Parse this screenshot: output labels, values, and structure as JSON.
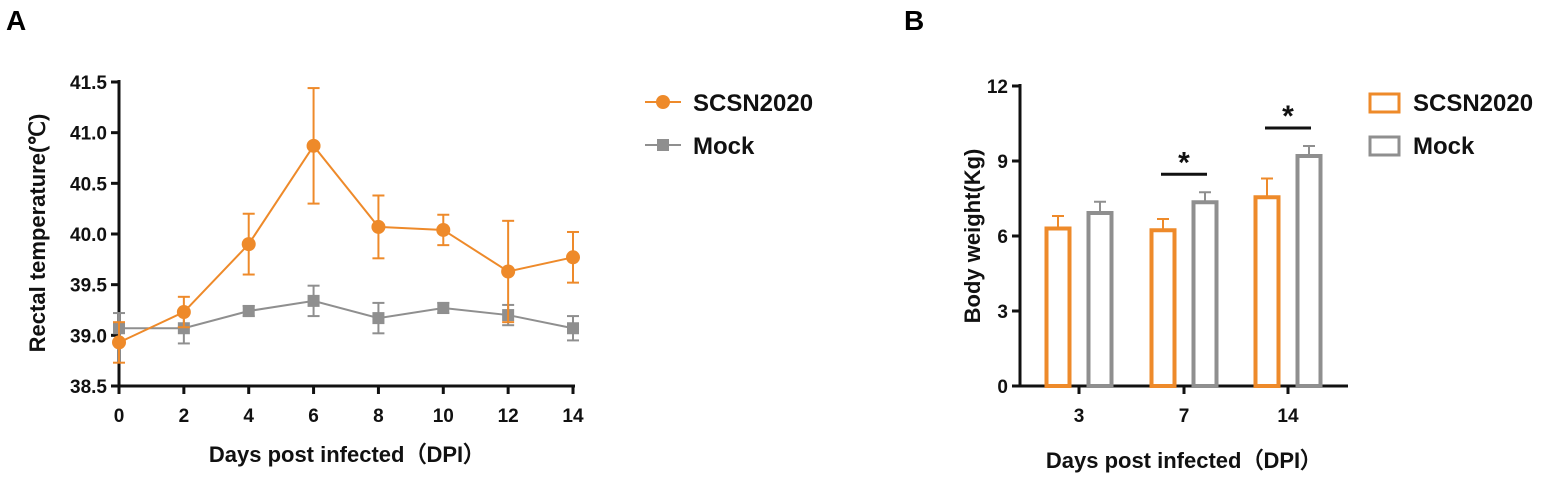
{
  "chart_data": [
    {
      "panel": "A",
      "type": "line",
      "xlabel": "Days post infected（DPI）",
      "ylabel": "Rectal temperature(℃)",
      "x": [
        0,
        2,
        4,
        6,
        8,
        10,
        12,
        14
      ],
      "xticks": [
        "0",
        "2",
        "4",
        "6",
        "8",
        "10",
        "12",
        "14"
      ],
      "yticks": [
        "38.5",
        "39.0",
        "39.5",
        "40.0",
        "40.5",
        "41.0",
        "41.5"
      ],
      "xlim": [
        0,
        14
      ],
      "ylim": [
        38.5,
        41.5
      ],
      "legend_position": "right",
      "series": [
        {
          "name": "SCSN2020",
          "color": "#EE8A2A",
          "marker": "circle",
          "values": [
            38.93,
            39.23,
            39.9,
            40.87,
            40.07,
            40.04,
            39.63,
            39.77
          ],
          "errors": [
            0.2,
            0.15,
            0.3,
            0.57,
            0.31,
            0.15,
            0.5,
            0.25
          ]
        },
        {
          "name": "Mock",
          "color": "#8F8F8F",
          "marker": "square",
          "values": [
            39.07,
            39.07,
            39.24,
            39.34,
            39.17,
            39.27,
            39.2,
            39.07
          ],
          "errors": [
            0.15,
            0.15,
            0.05,
            0.15,
            0.15,
            0.05,
            0.1,
            0.12
          ]
        }
      ]
    },
    {
      "panel": "B",
      "type": "bar",
      "xlabel": "Days post infected（DPI）",
      "ylabel": "Body weight(Kg)",
      "categories": [
        "3",
        "7",
        "14"
      ],
      "yticks": [
        "0",
        "3",
        "6",
        "9",
        "12"
      ],
      "ylim": [
        0,
        12
      ],
      "legend_position": "right",
      "series": [
        {
          "name": "SCSN2020",
          "color": "#EE8A2A",
          "values": [
            6.3,
            6.23,
            7.55
          ],
          "errors": [
            0.5,
            0.45,
            0.75
          ]
        },
        {
          "name": "Mock",
          "color": "#8F8F8F",
          "values": [
            6.92,
            7.35,
            9.2
          ],
          "errors": [
            0.45,
            0.4,
            0.4
          ]
        }
      ],
      "annotations": [
        {
          "category": "7",
          "text": "*"
        },
        {
          "category": "14",
          "text": "*"
        }
      ]
    }
  ]
}
